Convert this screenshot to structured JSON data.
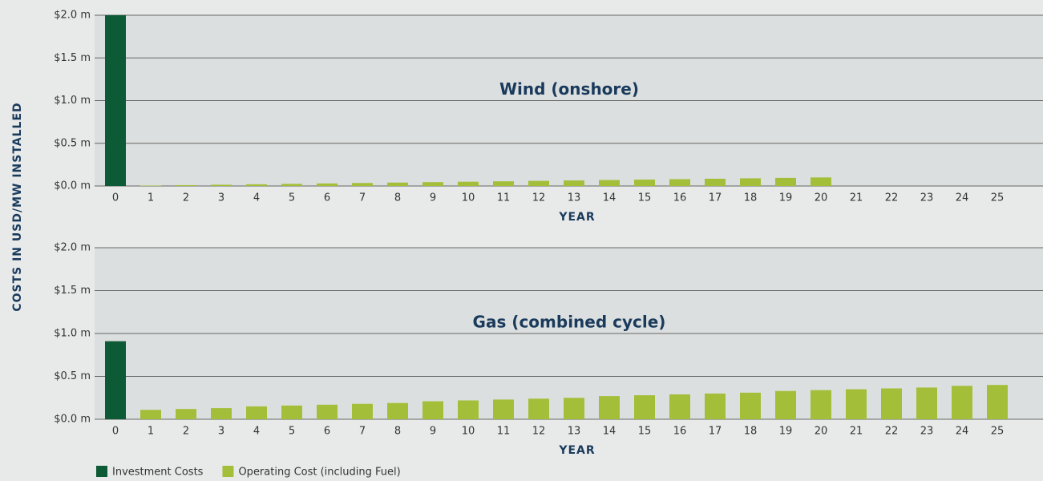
{
  "ylabel": "COSTS IN USD/MW INSTALLED",
  "legend": [
    {
      "name": "Investment Costs",
      "color": "#0d5a36"
    },
    {
      "name": "Operating Cost (including Fuel)",
      "color": "#a3bf3a"
    }
  ],
  "chart_data": [
    {
      "type": "bar",
      "title": "Wind (onshore)",
      "xlabel": "YEAR",
      "categories": [
        "0",
        "1",
        "2",
        "3",
        "4",
        "5",
        "6",
        "7",
        "8",
        "9",
        "10",
        "11",
        "12",
        "13",
        "14",
        "15",
        "16",
        "17",
        "18",
        "19",
        "20",
        "21",
        "22",
        "23",
        "24",
        "25"
      ],
      "series": [
        {
          "color": "#0d5a36",
          "values": [
            2.0,
            null,
            null,
            null,
            null,
            null,
            null,
            null,
            null,
            null,
            null,
            null,
            null,
            null,
            null,
            null,
            null,
            null,
            null,
            null,
            null,
            null,
            null,
            null,
            null,
            null
          ]
        },
        {
          "color": "#a3bf3a",
          "values": [
            null,
            0.005,
            0.01,
            0.015,
            0.02,
            0.025,
            0.03,
            0.035,
            0.04,
            0.045,
            0.05,
            0.055,
            0.06,
            0.065,
            0.07,
            0.075,
            0.08,
            0.085,
            0.09,
            0.095,
            0.1,
            null,
            null,
            null,
            null,
            null
          ]
        }
      ],
      "ylim": [
        0,
        2.0
      ],
      "yticks": [
        {
          "value": 0,
          "label": "$0.0 m"
        },
        {
          "value": 0.5,
          "label": "$0.5 m"
        },
        {
          "value": 1.0,
          "label": "$1.0 m"
        },
        {
          "value": 1.5,
          "label": "$1.5 m"
        },
        {
          "value": 2.0,
          "label": "$2.0 m"
        }
      ],
      "grid": true
    },
    {
      "type": "bar",
      "title": "Gas (combined cycle)",
      "xlabel": "YEAR",
      "categories": [
        "0",
        "1",
        "2",
        "3",
        "4",
        "5",
        "6",
        "7",
        "8",
        "9",
        "10",
        "11",
        "12",
        "13",
        "14",
        "15",
        "16",
        "17",
        "18",
        "19",
        "20",
        "21",
        "22",
        "23",
        "24",
        "25"
      ],
      "series": [
        {
          "color": "#0d5a36",
          "values": [
            0.91,
            null,
            null,
            null,
            null,
            null,
            null,
            null,
            null,
            null,
            null,
            null,
            null,
            null,
            null,
            null,
            null,
            null,
            null,
            null,
            null,
            null,
            null,
            null,
            null,
            null
          ]
        },
        {
          "color": "#a3bf3a",
          "values": [
            null,
            0.11,
            0.12,
            0.13,
            0.15,
            0.16,
            0.17,
            0.18,
            0.19,
            0.21,
            0.22,
            0.23,
            0.24,
            0.25,
            0.27,
            0.28,
            0.29,
            0.3,
            0.31,
            0.33,
            0.34,
            0.35,
            0.36,
            0.37,
            0.39,
            0.4
          ]
        }
      ],
      "ylim": [
        0,
        2.0
      ],
      "yticks": [
        {
          "value": 0,
          "label": "$0.0 m"
        },
        {
          "value": 0.5,
          "label": "$0.5 m"
        },
        {
          "value": 1.0,
          "label": "$1.0 m"
        },
        {
          "value": 1.5,
          "label": "$1.5 m"
        },
        {
          "value": 2.0,
          "label": "$2.0 m"
        }
      ],
      "grid": true
    }
  ]
}
